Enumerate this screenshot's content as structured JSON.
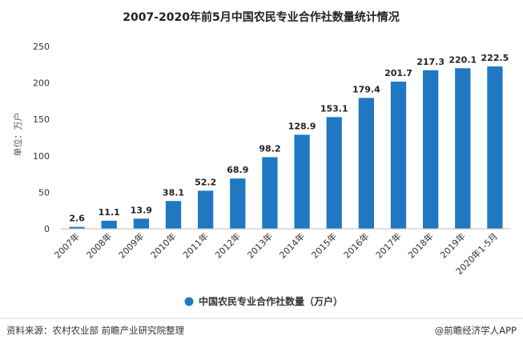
{
  "chart_data": {
    "type": "bar",
    "title": "2007-2020年前5月中国农民专业合作社数量统计情况",
    "ylabel": "单位：万户",
    "xlabel": "",
    "ylim": [
      0,
      250
    ],
    "yticks": [
      0,
      50,
      100,
      150,
      200,
      250
    ],
    "grid": false,
    "legend_position": "bottom",
    "categories": [
      "2007年",
      "2008年",
      "2009年",
      "2010年",
      "2011年",
      "2012年",
      "2013年",
      "2014年",
      "2015年",
      "2016年",
      "2017年",
      "2018年",
      "2019年",
      "2020年1-5月"
    ],
    "series": [
      {
        "name": "中国农民专业合作社数量（万户）",
        "color": "#1f78c1",
        "values": [
          2.6,
          11.1,
          13.9,
          38.1,
          52.2,
          68.9,
          98.2,
          128.9,
          153.1,
          179.4,
          201.7,
          217.3,
          220.1,
          222.5
        ]
      }
    ]
  },
  "footer": {
    "source": "资料来源：农村农业部 前瞻产业研究院整理",
    "brand": "@前瞻经济学人APP"
  }
}
